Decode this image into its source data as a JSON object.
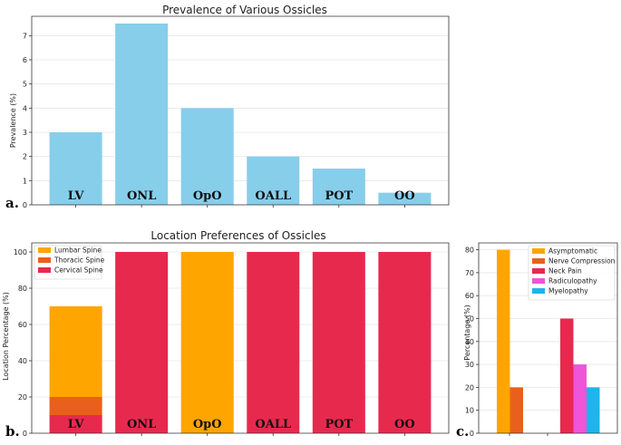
{
  "chart_data": [
    {
      "panel": "a.",
      "type": "bar",
      "title": "Prevalence of Various Ossicles",
      "xlabel": "",
      "ylabel": "Prevalence (%)",
      "ylim": [
        0,
        7.8
      ],
      "yticks": [
        0,
        1,
        2,
        3,
        4,
        5,
        6,
        7
      ],
      "categories": [
        "LV",
        "ONL",
        "OpO",
        "OALL",
        "POT",
        "OO"
      ],
      "values": [
        3.0,
        7.5,
        4.0,
        2.0,
        1.5,
        0.5
      ],
      "color": "#87CEEB"
    },
    {
      "panel": "b.",
      "type": "bar",
      "stacked": true,
      "title": "Location Preferences of Ossicles",
      "xlabel": "",
      "ylabel": "Location Percentage (%)",
      "ylim": [
        0,
        105
      ],
      "yticks": [
        0,
        20,
        40,
        60,
        80,
        100
      ],
      "categories": [
        "LV",
        "ONL",
        "OpO",
        "OALL",
        "POT",
        "OO"
      ],
      "series": [
        {
          "name": "Lumbar Spine",
          "color": "#FFA500",
          "values": [
            50,
            0,
            100,
            0,
            0,
            0
          ]
        },
        {
          "name": "Thoracic Spine",
          "color": "#E8601C",
          "values": [
            10,
            0,
            0,
            0,
            0,
            0
          ]
        },
        {
          "name": "Cervical Spine",
          "color": "#E8294E",
          "values": [
            10,
            100,
            0,
            100,
            100,
            100
          ]
        }
      ],
      "stack_order": [
        "Cervical Spine",
        "Thoracic Spine",
        "Lumbar Spine"
      ],
      "legend": "top-left"
    },
    {
      "panel": "c.",
      "type": "bar",
      "title": "",
      "xlabel": "",
      "ylabel": "Percentage (%)",
      "ylim": [
        0,
        83
      ],
      "yticks": [
        0,
        10,
        20,
        30,
        40,
        50,
        60,
        70,
        80
      ],
      "groups": 2,
      "series": [
        {
          "name": "Asymptomatic",
          "color": "#FFA500",
          "values": [
            80,
            0
          ]
        },
        {
          "name": "Nerve Compression",
          "color": "#E8601C",
          "values": [
            20,
            0
          ]
        },
        {
          "name": "Neck Pain",
          "color": "#E8294E",
          "values": [
            0,
            50
          ]
        },
        {
          "name": "Radiculopathy",
          "color": "#EE55D8",
          "values": [
            0,
            30
          ]
        },
        {
          "name": "Myelopathy",
          "color": "#1EB4EC",
          "values": [
            0,
            20
          ]
        }
      ],
      "legend": "top-right"
    }
  ]
}
